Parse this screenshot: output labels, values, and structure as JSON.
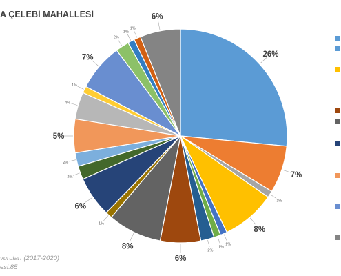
{
  "chart_data": {
    "type": "pie",
    "title": "A ÇELEBİ MAHALLESİ",
    "footnote_lines": [
      "vuruları (2017-2020)",
      "esi:85"
    ],
    "start_angle_deg": 0,
    "slices": [
      {
        "value": 26,
        "label": "26%",
        "color": "#5b9bd5"
      },
      {
        "value": 7,
        "label": "7%",
        "color": "#ed7d31"
      },
      {
        "value": 1,
        "label": "1%",
        "color": "#a5a5a5"
      },
      {
        "value": 8,
        "label": "8%",
        "color": "#ffc000"
      },
      {
        "value": 1,
        "label": "1%",
        "color": "#4472c4"
      },
      {
        "value": 1,
        "label": "1%",
        "color": "#70ad47"
      },
      {
        "value": 2,
        "label": "2%",
        "color": "#255e91"
      },
      {
        "value": 6,
        "label": "6%",
        "color": "#9e480e"
      },
      {
        "value": 8,
        "label": "8%",
        "color": "#636363"
      },
      {
        "value": 1,
        "label": "1%",
        "color": "#997300"
      },
      {
        "value": 6,
        "label": "6%",
        "color": "#264478"
      },
      {
        "value": 2,
        "label": "2%",
        "color": "#43682b"
      },
      {
        "value": 2,
        "label": "2%",
        "color": "#7cafdd"
      },
      {
        "value": 5,
        "label": "5%",
        "color": "#f1975a"
      },
      {
        "value": 4,
        "label": "4%",
        "color": "#b7b7b7"
      },
      {
        "value": 1,
        "label": "1%",
        "color": "#ffcd33"
      },
      {
        "value": 7,
        "label": "7%",
        "color": "#698ed0"
      },
      {
        "value": 2,
        "label": "2%",
        "color": "#8cc168"
      },
      {
        "value": 1,
        "label": "1%",
        "color": "#327dc2"
      },
      {
        "value": 1,
        "label": "1%",
        "color": "#d26012"
      },
      {
        "value": 6,
        "label": "6%",
        "color": "#848484"
      }
    ],
    "legend": {
      "position": "right",
      "entries": [
        {
          "color": "#5b9bd5"
        },
        {
          "color": "#5b9bd5"
        },
        {
          "color": "#ffc000"
        },
        {
          "color": "#9e480e"
        },
        {
          "color": "#636363"
        },
        {
          "color": "#264478"
        },
        {
          "color": "#f1975a"
        },
        {
          "color": "#698ed0"
        },
        {
          "color": "#848484"
        }
      ]
    }
  }
}
